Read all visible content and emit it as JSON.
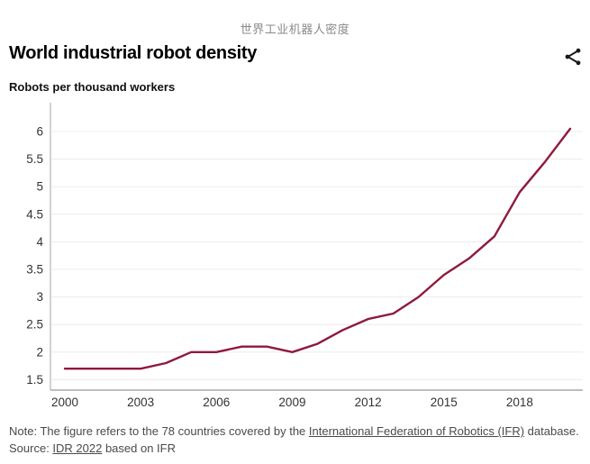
{
  "page": {
    "caption_zh": "世界工业机器人密度",
    "title": "World industrial robot density",
    "subtitle": "Robots per thousand workers"
  },
  "footer": {
    "note_prefix": "Note: The figure refers to the 78 countries covered by the ",
    "note_link": "International Federation of Robotics (IFR)",
    "note_suffix": " database.",
    "source_prefix": "Source: ",
    "source_link": "IDR 2022",
    "source_suffix": " based on IFR"
  },
  "colors": {
    "line": "#8e1a3c",
    "grid": "#ececec",
    "axis": "#b5b5b5",
    "tick_label": "#333333",
    "caption": "#8a8a8a",
    "footer_text": "#4a4a4a",
    "title": "#000000",
    "icon": "#1a1a1a"
  },
  "chart_data": {
    "type": "line",
    "title": "World industrial robot density",
    "xlabel": "",
    "ylabel": "Robots per thousand workers",
    "x": [
      2000,
      2001,
      2002,
      2003,
      2004,
      2005,
      2006,
      2007,
      2008,
      2009,
      2010,
      2011,
      2012,
      2013,
      2014,
      2015,
      2016,
      2017,
      2018,
      2019,
      2020
    ],
    "values": [
      1.7,
      1.7,
      1.7,
      1.7,
      1.8,
      2.0,
      2.0,
      2.1,
      2.1,
      2.0,
      2.15,
      2.4,
      2.6,
      2.7,
      3.0,
      3.4,
      3.7,
      4.1,
      4.9,
      5.45,
      6.05
    ],
    "x_ticks": [
      "2000",
      "2003",
      "2006",
      "2009",
      "2012",
      "2015",
      "2018"
    ],
    "y_ticks": [
      1.5,
      2,
      2.5,
      3,
      3.5,
      4,
      4.5,
      5,
      5.5,
      6
    ],
    "xlim": [
      2000,
      2020
    ],
    "ylim": [
      1.3,
      6.55
    ],
    "grid": "horizontal",
    "legend": "none"
  }
}
